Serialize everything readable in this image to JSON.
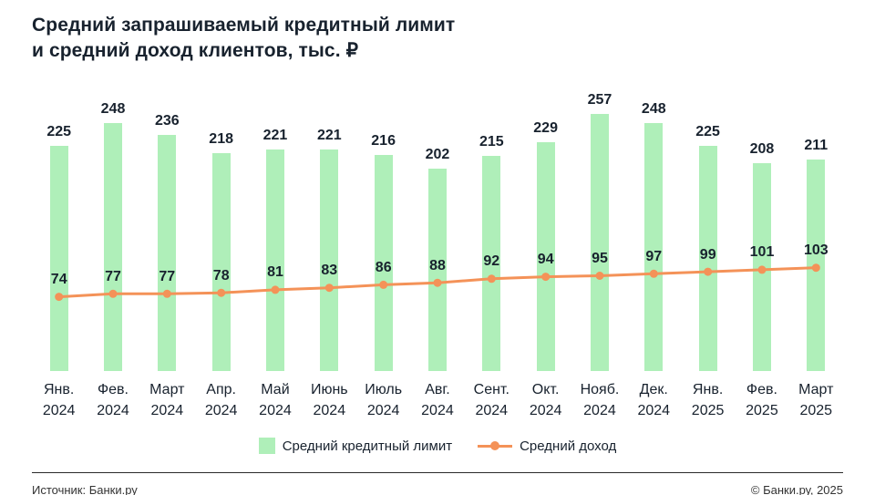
{
  "title": {
    "line1": "Средний запрашиваемый кредитный лимит",
    "line2": "и средний доход клиентов, тыс. ₽"
  },
  "chart_data": {
    "type": "bar",
    "title": "Средний запрашиваемый кредитный лимит и средний доход клиентов, тыс. ₽",
    "categories": [
      "Янв. 2024",
      "Фев. 2024",
      "Март 2024",
      "Апр. 2024",
      "Май 2024",
      "Июнь 2024",
      "Июль 2024",
      "Авг. 2024",
      "Сент. 2024",
      "Окт. 2024",
      "Нояб. 2024",
      "Дек. 2024",
      "Янв. 2025",
      "Фев. 2025",
      "Март 2025"
    ],
    "series": [
      {
        "name": "Средний кредитный лимит",
        "type": "bar",
        "values": [
          225,
          248,
          236,
          218,
          221,
          221,
          216,
          202,
          215,
          229,
          257,
          248,
          225,
          208,
          211
        ]
      },
      {
        "name": "Средний доход",
        "type": "line",
        "values": [
          74,
          77,
          77,
          78,
          81,
          83,
          86,
          88,
          92,
          94,
          95,
          97,
          99,
          101,
          103
        ]
      }
    ],
    "xlabel": "",
    "ylabel": "тыс. ₽",
    "ylim": [
      0,
      300
    ],
    "grid": false,
    "legend_position": "bottom",
    "data_labels": true
  },
  "legend": {
    "bars": "Средний кредитный лимит",
    "line": "Средний доход"
  },
  "footer": {
    "source": "Источник: Банки.ру",
    "copyright": "© Банки.ру, 2025"
  },
  "colors": {
    "bar": "#afefb9",
    "line": "#f49258",
    "text": "#18222e"
  }
}
